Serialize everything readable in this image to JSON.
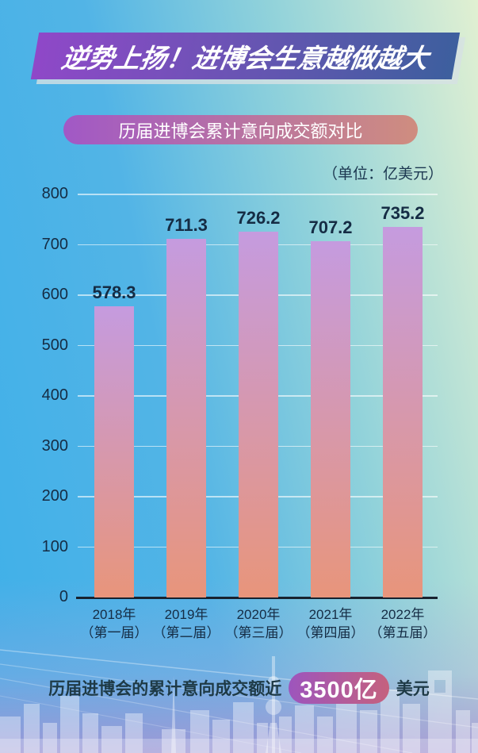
{
  "banner": {
    "title": "逆势上扬！进博会生意越做越大"
  },
  "subtitle": "历届进博会累计意向成交额对比",
  "unit_label": "（单位：亿美元）",
  "chart_data": {
    "type": "bar",
    "title": "历届进博会累计意向成交额对比",
    "unit": "亿美元",
    "categories": [
      "2018年",
      "2019年",
      "2020年",
      "2021年",
      "2022年"
    ],
    "category_sublabels": [
      "（第一届）",
      "（第二届）",
      "（第三届）",
      "（第四届）",
      "（第五届）"
    ],
    "values": [
      578.3,
      711.3,
      726.2,
      707.2,
      735.2
    ],
    "ylim": [
      0,
      800
    ],
    "yticks": [
      0,
      100,
      200,
      300,
      400,
      500,
      600,
      700,
      800
    ],
    "grid": true,
    "legend": "none",
    "bar_gradient_top": "#c59bdf",
    "bar_gradient_bottom": "#e8957b"
  },
  "caption": {
    "prefix": "历届进博会的累计意向成交额近",
    "highlight": "3500亿",
    "suffix": "美元"
  },
  "colors": {
    "banner_gradient_left": "#8f48c8",
    "banner_gradient_right": "#3d5f9e",
    "subtitle_gradient_left": "#a158c6",
    "subtitle_gradient_right": "#cf8d7f",
    "highlight_gradient_left": "#9d55bd",
    "highlight_gradient_right": "#c5617e",
    "axis_text": "#152c44",
    "background_blue": "#3fb0e9",
    "background_green": "#e1f0d2",
    "bottom_lavender": "#b29ad6"
  }
}
